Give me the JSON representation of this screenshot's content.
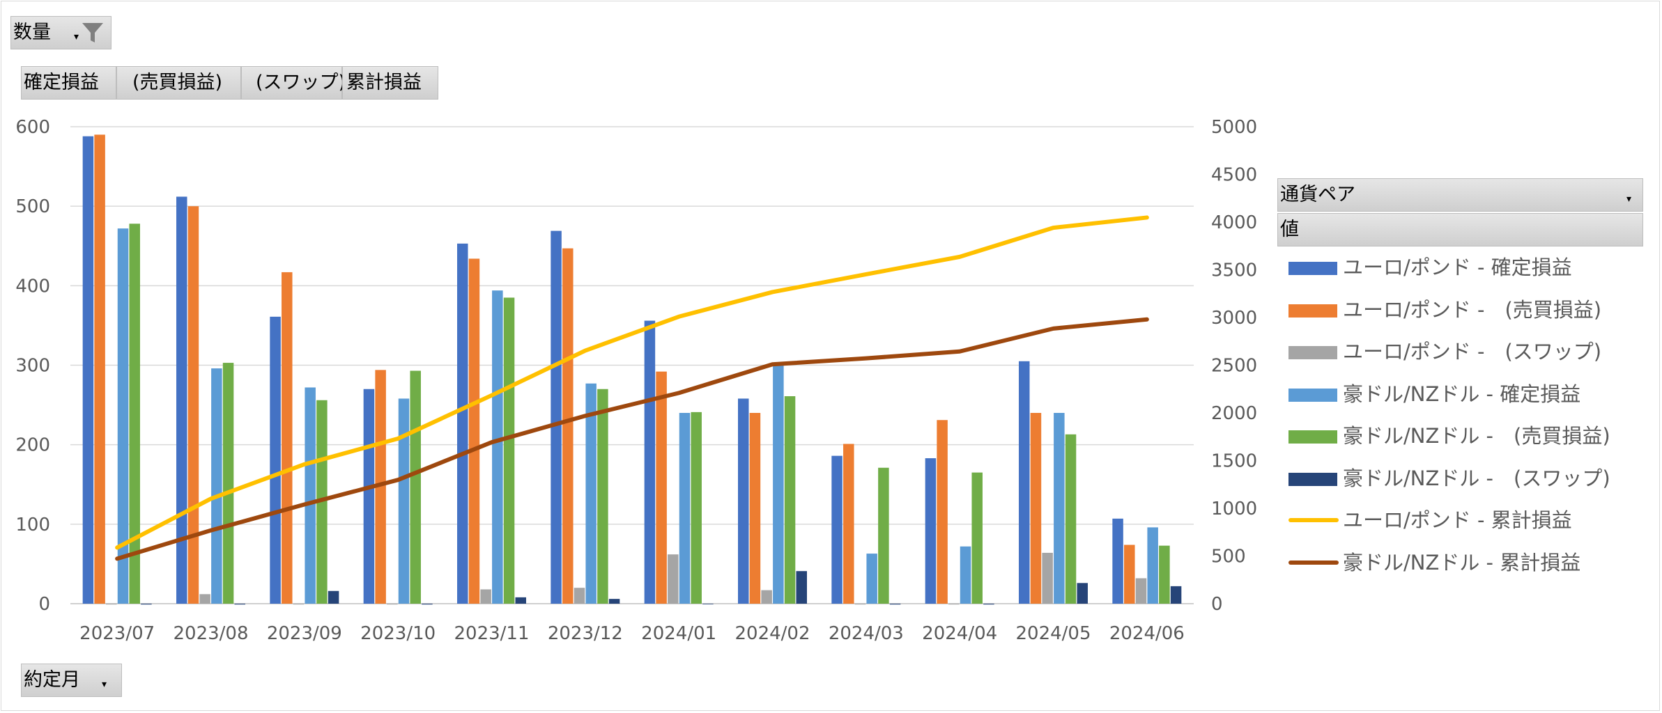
{
  "pivot": {
    "filter_label": "数量",
    "value_fields": [
      "確定損益",
      "(売買損益)",
      "(スワップ)",
      "累計損益"
    ],
    "axis_field": "約定月",
    "legend_field": "通貨ペア",
    "legend_values": "値"
  },
  "chart_data": {
    "type": "bar",
    "categories": [
      "2023/07",
      "2023/08",
      "2023/09",
      "2023/10",
      "2023/11",
      "2023/12",
      "2024/01",
      "2024/02",
      "2024/03",
      "2024/04",
      "2024/05",
      "2024/06"
    ],
    "ylim": [
      0,
      600
    ],
    "y_ticks": [
      0,
      100,
      200,
      300,
      400,
      500,
      600
    ],
    "y2lim": [
      0,
      5000
    ],
    "y2_ticks": [
      0,
      500,
      1000,
      1500,
      2000,
      2500,
      3000,
      3500,
      4000,
      4500,
      5000
    ],
    "grid": true,
    "legend_position": "right",
    "series": [
      {
        "name": "ユーロ/ポンド - 確定損益",
        "type": "bar",
        "axis": "left",
        "color": "#4472C4",
        "values": [
          588,
          512,
          361,
          270,
          453,
          469,
          356,
          258,
          186,
          183,
          305,
          107
        ]
      },
      {
        "name": "ユーロ/ポンド -　(売買損益)",
        "type": "bar",
        "axis": "left",
        "color": "#ED7D31",
        "values": [
          590,
          500,
          417,
          294,
          434,
          447,
          292,
          240,
          201,
          231,
          240,
          74
        ]
      },
      {
        "name": "ユーロ/ポンド -　(スワップ)",
        "type": "bar",
        "axis": "left",
        "color": "#A5A5A5",
        "values": [
          -1,
          12,
          -1,
          -1,
          18,
          20,
          62,
          17,
          -1,
          -1,
          64,
          32
        ]
      },
      {
        "name": "豪ドル/NZドル - 確定損益",
        "type": "bar",
        "axis": "left",
        "color": "#5B9BD5",
        "values": [
          472,
          296,
          272,
          258,
          394,
          277,
          240,
          300,
          63,
          72,
          240,
          96
        ]
      },
      {
        "name": "豪ドル/NZドル -　(売買損益)",
        "type": "bar",
        "axis": "left",
        "color": "#70AD47",
        "values": [
          478,
          303,
          256,
          293,
          385,
          270,
          241,
          261,
          171,
          165,
          213,
          73
        ]
      },
      {
        "name": "豪ドル/NZドル -　(スワップ)",
        "type": "bar",
        "axis": "left",
        "color": "#264478",
        "values": [
          -1,
          -1,
          16,
          -1,
          8,
          6,
          0,
          41,
          -1,
          -1,
          26,
          22
        ]
      },
      {
        "name": "ユーロ/ポンド - 累計損益",
        "type": "line",
        "axis": "right",
        "color": "#FFC000",
        "values": [
          588,
          1100,
          1461,
          1731,
          2184,
          2653,
          3009,
          3267,
          3453,
          3636,
          3941,
          4048
        ]
      },
      {
        "name": "豪ドル/NZドル - 累計損益",
        "type": "line",
        "axis": "right",
        "color": "#9E480E",
        "values": [
          472,
          768,
          1040,
          1298,
          1692,
          1969,
          2209,
          2509,
          2572,
          2644,
          2884,
          2980
        ]
      }
    ]
  }
}
